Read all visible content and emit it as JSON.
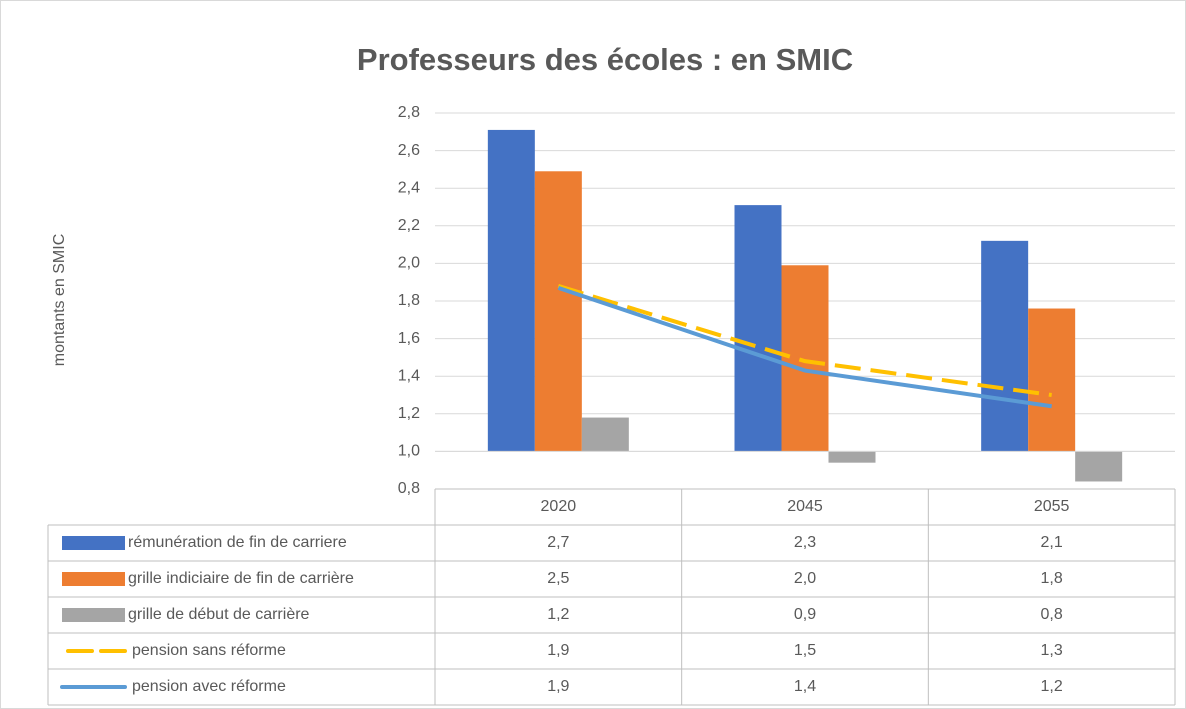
{
  "chart_data": {
    "type": "bar",
    "title": "Professeurs des écoles : en SMIC",
    "y_label": "montants en SMIC",
    "categories": [
      "2020",
      "2045",
      "2055"
    ],
    "ylim": [
      0.8,
      2.8
    ],
    "yticks": [
      {
        "value": 0.8,
        "label": "0,8"
      },
      {
        "value": 1.0,
        "label": "1,0"
      },
      {
        "value": 1.2,
        "label": "1,2"
      },
      {
        "value": 1.4,
        "label": "1,4"
      },
      {
        "value": 1.6,
        "label": "1,6"
      },
      {
        "value": 1.8,
        "label": "1,8"
      },
      {
        "value": 2.0,
        "label": "2,0"
      },
      {
        "value": 2.2,
        "label": "2,2"
      },
      {
        "value": 2.4,
        "label": "2,4"
      },
      {
        "value": 2.6,
        "label": "2,6"
      },
      {
        "value": 2.8,
        "label": "2,8"
      }
    ],
    "x_axis_crosses": 1.0,
    "grid": true,
    "data_table": true,
    "series": [
      {
        "name": "rémunération de fin de carriere",
        "type": "bar",
        "color": "#4472c4",
        "values": [
          2.71,
          2.31,
          2.12
        ],
        "value_labels": [
          "2,7",
          "2,3",
          "2,1"
        ]
      },
      {
        "name": "grille indiciaire de fin de carrière",
        "type": "bar",
        "color": "#ed7d31",
        "values": [
          2.49,
          1.99,
          1.76
        ],
        "value_labels": [
          "2,5",
          "2,0",
          "1,8"
        ]
      },
      {
        "name": "grille de début de carrière",
        "type": "bar",
        "color": "#a5a5a5",
        "values": [
          1.18,
          0.94,
          0.84
        ],
        "value_labels": [
          "1,2",
          "0,9",
          "0,8"
        ]
      },
      {
        "name": "pension sans réforme",
        "type": "line",
        "dashed": true,
        "color": "#ffc000",
        "values": [
          1.88,
          1.48,
          1.3
        ],
        "value_labels": [
          "1,9",
          "1,5",
          "1,3"
        ]
      },
      {
        "name": "pension avec réforme",
        "type": "line",
        "color": "#5b9bd5",
        "values": [
          1.87,
          1.43,
          1.24
        ],
        "value_labels": [
          "1,9",
          "1,4",
          "1,2"
        ]
      }
    ]
  }
}
